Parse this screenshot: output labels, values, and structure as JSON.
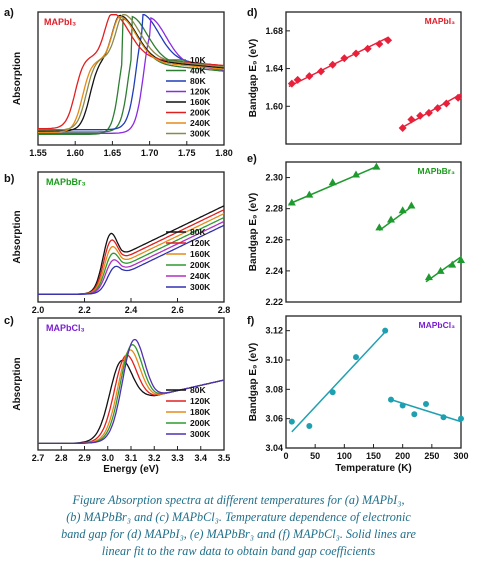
{
  "caption": {
    "l1": "Figure   Absorption spectra at different temperatures for (a) MAPbI₃,",
    "l2": "(b) MAPbBr₃ and (c) MAPbCl₃. Temperature dependence of electronic",
    "l3": "band gap for (d) MAPbI₃, (e) MAPbBr₃ and (f) MAPbCl₃. Solid lines are",
    "l4": "linear fit to the raw data to obtain band gap coefficients"
  },
  "chart_data": [
    {
      "panel": "a)",
      "type": "line",
      "label": "MAPbI₃",
      "label_color": "#e0202a",
      "xlim": [
        1.55,
        1.8
      ],
      "xticks": [
        "1.55",
        "1.60",
        "1.65",
        "1.70",
        "1.75",
        "1.80"
      ],
      "ylabel": "Absorption",
      "xlabel": "",
      "legend": "right",
      "series": [
        {
          "name": "10K",
          "color": "#2e7d32",
          "edge": 1.66,
          "peak": 1.663
        },
        {
          "name": "40K",
          "color": "#2e7d32",
          "edge": 1.672,
          "peak": 1.675
        },
        {
          "name": "80K",
          "color": "#1f3db8",
          "edge": 1.68,
          "peak": 1.69
        },
        {
          "name": "120K",
          "color": "#8a2be2",
          "edge": 1.69,
          "peak": 1.7
        },
        {
          "name": "160K",
          "color": "#111111",
          "edge": 1.62,
          "peak": 1.66
        },
        {
          "name": "200K",
          "color": "#e02020",
          "edge": 1.6,
          "peak": 1.65
        },
        {
          "name": "240K",
          "color": "#e58a1a",
          "edge": 1.61,
          "peak": 1.66
        },
        {
          "name": "300K",
          "color": "#8a8a4a",
          "edge": 1.615,
          "peak": 1.665
        }
      ]
    },
    {
      "panel": "b)",
      "type": "line",
      "label": "MAPbBr₃",
      "label_color": "#1a9a1a",
      "xlim": [
        2.0,
        2.8
      ],
      "xticks": [
        "2.0",
        "2.2",
        "2.4",
        "2.6",
        "2.8"
      ],
      "ylabel": "Absorption",
      "xlabel": "",
      "legend": "right",
      "series": [
        {
          "name": "80K",
          "color": "#111111",
          "peak": 2.31
        },
        {
          "name": "120K",
          "color": "#e02020",
          "peak": 2.313
        },
        {
          "name": "160K",
          "color": "#e58a1a",
          "peak": 2.316
        },
        {
          "name": "200K",
          "color": "#2e9a2e",
          "peak": 2.319
        },
        {
          "name": "240K",
          "color": "#b030c0",
          "peak": 2.322
        },
        {
          "name": "300K",
          "color": "#3030b0",
          "peak": 2.33
        }
      ]
    },
    {
      "panel": "c)",
      "type": "line",
      "label": "MAPbCl₃",
      "label_color": "#7a1fd0",
      "xlim": [
        2.7,
        3.5
      ],
      "xticks": [
        "2.7",
        "2.8",
        "2.9",
        "3.0",
        "3.1",
        "3.2",
        "3.3",
        "3.4",
        "3.5"
      ],
      "ylabel": "Absorption",
      "xlabel": "Energy (eV)",
      "legend": "right",
      "series": [
        {
          "name": "80K",
          "color": "#111111",
          "peak": 3.055
        },
        {
          "name": "120K",
          "color": "#e02020",
          "peak": 3.075
        },
        {
          "name": "180K",
          "color": "#e58a1a",
          "peak": 3.09
        },
        {
          "name": "200K",
          "color": "#2e9a2e",
          "peak": 3.1
        },
        {
          "name": "300K",
          "color": "#5030b0",
          "peak": 3.11
        }
      ]
    },
    {
      "panel": "d)",
      "type": "scatter",
      "label": "MAPbI₃",
      "label_color": "#e0202a",
      "color": "#e8203a",
      "marker": "diamond",
      "xlim": [
        0,
        300
      ],
      "ylim": [
        1.56,
        1.7
      ],
      "yticks": [
        1.6,
        1.64,
        1.68
      ],
      "ylabel": "Bandgap E₉ (eV)",
      "points": [
        [
          10,
          1.624
        ],
        [
          20,
          1.628
        ],
        [
          40,
          1.632
        ],
        [
          60,
          1.637
        ],
        [
          80,
          1.644
        ],
        [
          100,
          1.651
        ],
        [
          120,
          1.656
        ],
        [
          140,
          1.661
        ],
        [
          160,
          1.666
        ],
        [
          175,
          1.67
        ]
      ],
      "fit": [
        [
          5,
          1.621
        ],
        [
          175,
          1.673
        ]
      ],
      "points2": [
        [
          200,
          1.577
        ],
        [
          215,
          1.586
        ],
        [
          230,
          1.59
        ],
        [
          245,
          1.593
        ],
        [
          260,
          1.598
        ],
        [
          275,
          1.603
        ],
        [
          295,
          1.609
        ]
      ],
      "fit2": [
        [
          195,
          1.576
        ],
        [
          300,
          1.613
        ]
      ]
    },
    {
      "panel": "e)",
      "type": "scatter",
      "label": "MAPbBr₃",
      "label_color": "#1a9a1a",
      "color": "#1e9a2e",
      "marker": "triangle",
      "xlim": [
        0,
        300
      ],
      "ylim": [
        2.22,
        2.31
      ],
      "yticks": [
        2.22,
        2.24,
        2.26,
        2.28,
        2.3
      ],
      "ylabel": "Bandgap E₉ (eV)",
      "points": [
        [
          10,
          2.284
        ],
        [
          40,
          2.289
        ],
        [
          80,
          2.297
        ],
        [
          120,
          2.302
        ],
        [
          155,
          2.307
        ]
      ],
      "fit": [
        [
          5,
          2.283
        ],
        [
          155,
          2.307
        ]
      ],
      "points2": [
        [
          160,
          2.268
        ],
        [
          180,
          2.273
        ],
        [
          200,
          2.279
        ],
        [
          215,
          2.282
        ]
      ],
      "fit2": [
        [
          160,
          2.266
        ],
        [
          218,
          2.282
        ]
      ],
      "points3": [
        [
          245,
          2.236
        ],
        [
          265,
          2.24
        ],
        [
          285,
          2.244
        ],
        [
          300,
          2.247
        ]
      ],
      "fit3": [
        [
          240,
          2.233
        ],
        [
          300,
          2.249
        ]
      ]
    },
    {
      "panel": "f)",
      "type": "scatter",
      "label": "MAPbCl₃",
      "label_color": "#7a1fd0",
      "color": "#1fa0b0",
      "marker": "circle",
      "xlim": [
        0,
        300
      ],
      "ylim": [
        3.04,
        3.13
      ],
      "yticks": [
        3.04,
        3.06,
        3.08,
        3.1,
        3.12
      ],
      "ylabel": "Bandgap E₉ (eV)",
      "xlabel": "Temperature (K)",
      "xticks": [
        "0",
        "50",
        "100",
        "150",
        "200",
        "250",
        "300"
      ],
      "points": [
        [
          10,
          3.058
        ],
        [
          40,
          3.055
        ],
        [
          80,
          3.078
        ],
        [
          120,
          3.102
        ],
        [
          170,
          3.12
        ]
      ],
      "fit": [
        [
          10,
          3.051
        ],
        [
          172,
          3.12
        ]
      ],
      "points2": [
        [
          180,
          3.073
        ],
        [
          200,
          3.069
        ],
        [
          220,
          3.063
        ],
        [
          240,
          3.07
        ],
        [
          270,
          3.061
        ],
        [
          300,
          3.06
        ]
      ],
      "fit2": [
        [
          180,
          3.073
        ],
        [
          300,
          3.058
        ]
      ]
    }
  ]
}
